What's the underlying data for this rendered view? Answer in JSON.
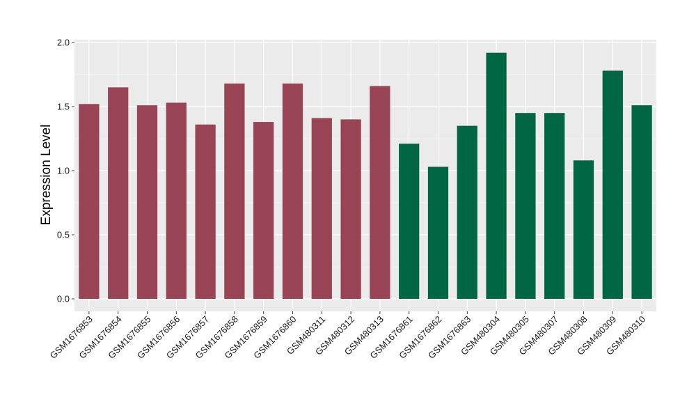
{
  "chart_data": {
    "type": "bar",
    "title": "",
    "xlabel": "",
    "ylabel": "Expression Level",
    "ylim": [
      0,
      2.0
    ],
    "yticks": [
      0.0,
      0.5,
      1.0,
      1.5,
      2.0
    ],
    "ytick_labels": [
      "0.0",
      "0.5",
      "1.0",
      "1.5",
      "2.0"
    ],
    "grid": true,
    "legend": "none",
    "panel_color": "#ebebeb",
    "grid_color": "#ffffff",
    "categories": [
      "GSM1676853",
      "GSM1676854",
      "GSM1676855",
      "GSM1676856",
      "GSM1676857",
      "GSM1676858",
      "GSM1676859",
      "GSM1676860",
      "GSM480311",
      "GSM480312",
      "GSM480313",
      "GSM1676861",
      "GSM1676862",
      "GSM1676863",
      "GSM480304",
      "GSM480305",
      "GSM480307",
      "GSM480308",
      "GSM480309",
      "GSM480310"
    ],
    "values": [
      1.52,
      1.65,
      1.51,
      1.53,
      1.36,
      1.68,
      1.38,
      1.68,
      1.41,
      1.4,
      1.66,
      1.21,
      1.03,
      1.35,
      1.92,
      1.45,
      1.45,
      1.08,
      1.78,
      1.51
    ],
    "groups": [
      0,
      0,
      0,
      0,
      0,
      0,
      0,
      0,
      0,
      0,
      0,
      1,
      1,
      1,
      1,
      1,
      1,
      1,
      1,
      1
    ],
    "group_colors": [
      "#994455",
      "#006644"
    ]
  }
}
